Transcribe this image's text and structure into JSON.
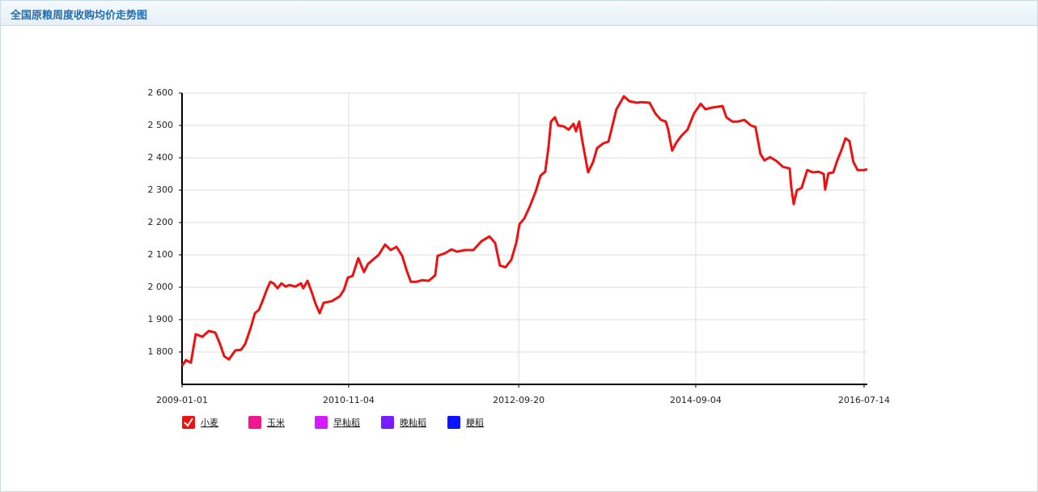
{
  "chart_data": {
    "type": "line",
    "title": "全国原粮周度收购均价走势图",
    "x": [
      "2009-01-01",
      "2009-01-17",
      "2009-02-06",
      "2009-02-25",
      "2009-03-24",
      "2009-04-19",
      "2009-05-15",
      "2009-06-03",
      "2009-06-20",
      "2009-07-09",
      "2009-08-04",
      "2009-08-27",
      "2009-09-13",
      "2009-10-05",
      "2009-10-22",
      "2009-11-07",
      "2009-11-23",
      "2009-12-10",
      "2009-12-23",
      "2010-01-05",
      "2010-01-21",
      "2010-02-06",
      "2010-02-23",
      "2010-03-11",
      "2010-04-03",
      "2010-04-26",
      "2010-05-05",
      "2010-05-22",
      "2010-06-07",
      "2010-06-23",
      "2010-07-10",
      "2010-07-26",
      "2010-08-28",
      "2010-09-29",
      "2010-10-16",
      "2010-11-01",
      "2010-11-20",
      "2010-12-13",
      "2011-01-05",
      "2011-01-21",
      "2011-02-13",
      "2011-03-05",
      "2011-03-31",
      "2011-04-23",
      "2011-05-16",
      "2011-06-08",
      "2011-06-27",
      "2011-07-13",
      "2011-08-05",
      "2011-08-28",
      "2011-09-23",
      "2011-10-19",
      "2011-10-29",
      "2011-11-27",
      "2011-12-24",
      "2012-01-15",
      "2012-02-17",
      "2012-03-21",
      "2012-04-22",
      "2012-05-25",
      "2012-06-17",
      "2012-07-06",
      "2012-07-29",
      "2012-08-21",
      "2012-09-10",
      "2012-09-23",
      "2012-10-12",
      "2012-11-04",
      "2012-11-27",
      "2012-12-17",
      "2013-01-05",
      "2013-01-18",
      "2013-01-28",
      "2013-02-13",
      "2013-02-26",
      "2013-03-21",
      "2013-04-10",
      "2013-04-29",
      "2013-05-09",
      "2013-05-22",
      "2013-06-04",
      "2013-06-27",
      "2013-07-17",
      "2013-08-02",
      "2013-08-28",
      "2013-09-17",
      "2013-10-03",
      "2013-10-19",
      "2013-11-05",
      "2013-11-18",
      "2013-12-10",
      "2014-01-09",
      "2014-01-28",
      "2014-03-02",
      "2014-03-25",
      "2014-04-17",
      "2014-05-06",
      "2014-05-16",
      "2014-06-01",
      "2014-06-18",
      "2014-07-07",
      "2014-08-02",
      "2014-08-28",
      "2014-09-24",
      "2014-10-13",
      "2014-11-08",
      "2014-12-21",
      "2015-01-06",
      "2015-01-29",
      "2015-02-21",
      "2015-03-19",
      "2015-04-14",
      "2015-05-03",
      "2015-05-23",
      "2015-06-08",
      "2015-07-01",
      "2015-07-27",
      "2015-08-22",
      "2015-09-18",
      "2015-09-24",
      "2015-10-04",
      "2015-10-17",
      "2015-11-05",
      "2015-11-28",
      "2015-12-21",
      "2016-01-13",
      "2016-02-02",
      "2016-02-08",
      "2016-02-21",
      "2016-03-12",
      "2016-03-28",
      "2016-04-13",
      "2016-04-30",
      "2016-05-16",
      "2016-06-01",
      "2016-06-18",
      "2016-07-14",
      "2016-07-27"
    ],
    "series": [
      {
        "name": "小麦",
        "color": "#ee1111",
        "selected": true,
        "values": [
          1757,
          1775,
          1767,
          1855,
          1847,
          1865,
          1860,
          1825,
          1787,
          1777,
          1805,
          1807,
          1825,
          1875,
          1920,
          1930,
          1960,
          1995,
          2017,
          2012,
          1997,
          2012,
          2002,
          2007,
          2002,
          2012,
          1997,
          2020,
          1987,
          1950,
          1920,
          1952,
          1957,
          1972,
          1992,
          2030,
          2035,
          2090,
          2047,
          2072,
          2087,
          2100,
          2132,
          2115,
          2125,
          2097,
          2050,
          2017,
          2017,
          2022,
          2020,
          2037,
          2097,
          2105,
          2117,
          2110,
          2115,
          2115,
          2142,
          2157,
          2137,
          2067,
          2062,
          2085,
          2137,
          2195,
          2212,
          2250,
          2295,
          2345,
          2357,
          2432,
          2512,
          2525,
          2500,
          2497,
          2487,
          2505,
          2482,
          2512,
          2450,
          2355,
          2387,
          2430,
          2445,
          2450,
          2500,
          2550,
          2572,
          2590,
          2575,
          2570,
          2572,
          2570,
          2537,
          2517,
          2512,
          2487,
          2422,
          2447,
          2467,
          2487,
          2537,
          2567,
          2550,
          2555,
          2560,
          2525,
          2512,
          2512,
          2517,
          2500,
          2495,
          2412,
          2392,
          2402,
          2390,
          2372,
          2367,
          2312,
          2257,
          2300,
          2307,
          2362,
          2355,
          2357,
          2350,
          2302,
          2352,
          2355,
          2392,
          2422,
          2460,
          2452,
          2387,
          2362,
          2362,
          2365
        ]
      }
    ],
    "legend_inactive": [
      {
        "name": "玉米",
        "color": "#f0188f"
      },
      {
        "name": "早籼稻",
        "color": "#d41aff"
      },
      {
        "name": "晚籼稻",
        "color": "#7a1aff"
      },
      {
        "name": "粳稻",
        "color": "#0a14ff"
      }
    ],
    "xlim": [
      "2009-01-01",
      "2016-07-27"
    ],
    "xticks": [
      "2009-01-01",
      "2010-11-04",
      "2012-09-20",
      "2014-09-04",
      "2016-07-14"
    ],
    "ylim": [
      1700,
      2600
    ],
    "yticks": [
      {
        "value": 1800,
        "label": "1 800"
      },
      {
        "value": 1900,
        "label": "1 900"
      },
      {
        "value": 2000,
        "label": "2 000"
      },
      {
        "value": 2100,
        "label": "2 100"
      },
      {
        "value": 2200,
        "label": "2 200"
      },
      {
        "value": 2300,
        "label": "2 300"
      },
      {
        "value": 2400,
        "label": "2 400"
      },
      {
        "value": 2500,
        "label": "2 500"
      },
      {
        "value": 2600,
        "label": "2 600"
      }
    ],
    "grid": true
  }
}
